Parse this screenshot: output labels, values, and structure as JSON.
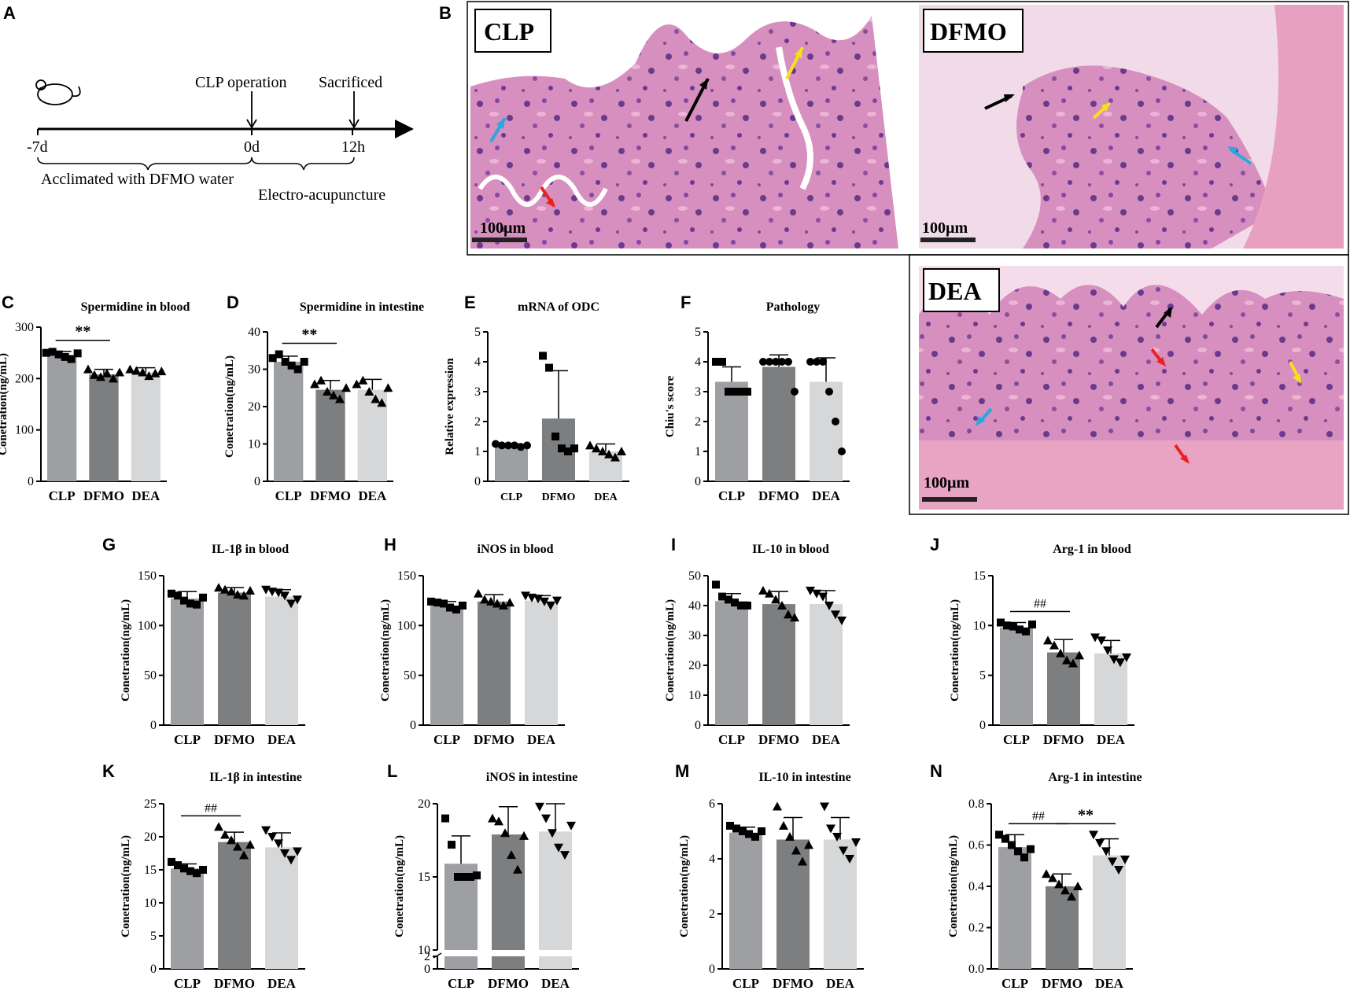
{
  "panel_labels": [
    "A",
    "B",
    "C",
    "D",
    "E",
    "F",
    "G",
    "H",
    "I",
    "J",
    "K",
    "L",
    "M",
    "N"
  ],
  "panel_a": {
    "event_cl": "CLP operation",
    "event_sac": "Sacrificed",
    "tick_start": "-7d",
    "tick_zero": "0d",
    "tick_end": "12h",
    "period1": "Acclimated with DFMO water",
    "period2": "Electro-acupuncture"
  },
  "panel_b": {
    "labels": [
      "CLP",
      "DFMO",
      "DEA"
    ],
    "scale_text": "100µm",
    "arrow_colors": [
      "#000000",
      "#f5e11a",
      "#2aa7e0",
      "#e8231f"
    ]
  },
  "colors": {
    "clp": "#9d9fa2",
    "dfmo": "#7d7e80",
    "dea": "#d6d7d8"
  },
  "chart_data": [
    {
      "id": "C",
      "type": "bar",
      "title": "Spermidine in blood",
      "ylabel": "Conetration(ng/mL)",
      "categories": [
        "CLP",
        "DFMO",
        "DEA"
      ],
      "values": [
        245,
        208,
        212
      ],
      "err": [
        8,
        10,
        9
      ],
      "ylim": [
        0,
        300
      ],
      "yticks": [
        0,
        100,
        200,
        300
      ],
      "sig": [
        {
          "from": 0,
          "to": 1,
          "label": "**"
        }
      ],
      "points": [
        [
          250,
          252,
          247,
          242,
          238,
          249
        ],
        [
          218,
          207,
          203,
          210,
          200,
          212
        ],
        [
          218,
          215,
          212,
          205,
          210,
          214
        ]
      ],
      "markers": [
        "square",
        "triangle",
        "triangle"
      ]
    },
    {
      "id": "D",
      "type": "bar",
      "title": "Spermidine in intestine",
      "ylabel": "Conetration(ng/mL)",
      "categories": [
        "CLP",
        "DFMO",
        "DEA"
      ],
      "values": [
        32,
        24.5,
        24.5
      ],
      "err": [
        1.5,
        2.5,
        2.8
      ],
      "ylim": [
        0,
        40
      ],
      "yticks": [
        0,
        10,
        20,
        30,
        40
      ],
      "sig": [
        {
          "from": 0,
          "to": 1,
          "label": "**"
        }
      ],
      "points": [
        [
          33,
          34,
          32,
          31,
          30,
          32
        ],
        [
          26,
          27,
          24,
          23,
          22,
          25
        ],
        [
          26,
          27,
          24,
          22,
          21,
          25
        ]
      ],
      "markers": [
        "square",
        "triangle",
        "triangle"
      ]
    },
    {
      "id": "E",
      "type": "bar",
      "title": "mRNA of ODC",
      "ylabel": "Relative expression",
      "categories": [
        "CLP",
        "DFMO",
        "DEA"
      ],
      "values": [
        1.2,
        2.1,
        1.0
      ],
      "err": [
        0.05,
        1.6,
        0.25
      ],
      "ylim": [
        0,
        5
      ],
      "yticks": [
        0,
        1,
        2,
        3,
        4,
        5
      ],
      "sig": [],
      "points": [
        [
          1.25,
          1.2,
          1.2,
          1.2,
          1.15,
          1.2
        ],
        [
          4.2,
          3.8,
          1.5,
          1.1,
          1.0,
          1.1
        ],
        [
          1.2,
          1.1,
          1.0,
          0.9,
          0.8,
          1.0
        ]
      ],
      "markers": [
        "circle",
        "square",
        "triangle"
      ],
      "sansfont": true
    },
    {
      "id": "F",
      "type": "bar",
      "title": "Pathology",
      "ylabel": "Chiu's score",
      "categories": [
        "CLP",
        "DFMO",
        "DEA"
      ],
      "values": [
        3.33,
        3.83,
        3.33
      ],
      "err": [
        0.5,
        0.4,
        0.8
      ],
      "ylim": [
        0,
        5
      ],
      "yticks": [
        0,
        1,
        2,
        3,
        4,
        5
      ],
      "sig": [],
      "points": [
        [
          4,
          4,
          3,
          3,
          3,
          3
        ],
        [
          4,
          4,
          4,
          4,
          4,
          3
        ],
        [
          4,
          4,
          4,
          3,
          2,
          1
        ]
      ],
      "markers": [
        "square",
        "circle",
        "circle"
      ]
    },
    {
      "id": "G",
      "type": "bar",
      "title": "IL-1β in blood",
      "ylabel": "Conetration(ng/mL)",
      "categories": [
        "CLP",
        "DFMO",
        "DEA"
      ],
      "values": [
        127,
        133,
        129
      ],
      "err": [
        7,
        5,
        7
      ],
      "ylim": [
        0,
        150
      ],
      "yticks": [
        0,
        50,
        100,
        150
      ],
      "sig": [],
      "points": [
        [
          132,
          130,
          125,
          122,
          121,
          128
        ],
        [
          138,
          136,
          134,
          131,
          130,
          135
        ],
        [
          136,
          134,
          133,
          130,
          122,
          126
        ]
      ],
      "markers": [
        "square",
        "triangle",
        "triangle-down"
      ]
    },
    {
      "id": "H",
      "type": "bar",
      "title": "iNOS in blood",
      "ylabel": "Conetration(ng/mL)",
      "categories": [
        "CLP",
        "DFMO",
        "DEA"
      ],
      "values": [
        120,
        124,
        125
      ],
      "err": [
        4,
        7,
        5
      ],
      "ylim": [
        0,
        150
      ],
      "yticks": [
        0,
        50,
        100,
        150
      ],
      "sig": [],
      "points": [
        [
          124,
          123,
          122,
          118,
          116,
          120
        ],
        [
          132,
          126,
          124,
          122,
          120,
          123
        ],
        [
          130,
          128,
          127,
          124,
          120,
          125
        ]
      ],
      "markers": [
        "square",
        "triangle",
        "triangle-down"
      ]
    },
    {
      "id": "I",
      "type": "bar",
      "title": "IL-10 in blood",
      "ylabel": "Conetration(ng/mL)",
      "categories": [
        "CLP",
        "DFMO",
        "DEA"
      ],
      "values": [
        41.5,
        40.5,
        40.5
      ],
      "err": [
        2.5,
        4.2,
        4.5
      ],
      "ylim": [
        0,
        50
      ],
      "yticks": [
        0,
        10,
        20,
        30,
        40,
        50
      ],
      "sig": [],
      "points": [
        [
          47,
          43,
          42,
          41,
          40,
          40
        ],
        [
          45,
          44,
          42,
          40,
          37,
          36
        ],
        [
          45,
          44,
          43,
          40,
          37,
          35
        ]
      ],
      "markers": [
        "square",
        "triangle",
        "triangle-down"
      ]
    },
    {
      "id": "J",
      "type": "bar",
      "title": "Arg-1 in blood",
      "ylabel": "Conetration(ng/mL)",
      "categories": [
        "CLP",
        "DFMO",
        "DEA"
      ],
      "values": [
        9.8,
        7.3,
        7.2
      ],
      "err": [
        0.5,
        1.3,
        1.3
      ],
      "ylim": [
        0,
        15
      ],
      "yticks": [
        0,
        5,
        10,
        15
      ],
      "sig": [
        {
          "from": 0,
          "to": 1,
          "label": "##"
        }
      ],
      "points": [
        [
          10.3,
          10.0,
          9.9,
          9.6,
          9.4,
          10.1
        ],
        [
          8.5,
          8.0,
          7.2,
          6.5,
          6.2,
          7.0
        ],
        [
          8.8,
          8.5,
          7.5,
          6.6,
          6.3,
          6.8
        ]
      ],
      "markers": [
        "square",
        "triangle",
        "triangle-down"
      ]
    },
    {
      "id": "K",
      "type": "bar",
      "title": "IL-1β in intestine",
      "ylabel": "Conetration(ng/mL)",
      "categories": [
        "CLP",
        "DFMO",
        "DEA"
      ],
      "values": [
        15.2,
        19.2,
        18.4
      ],
      "err": [
        0.7,
        1.5,
        2.2
      ],
      "ylim": [
        0,
        25
      ],
      "yticks": [
        0,
        5,
        10,
        15,
        20,
        25
      ],
      "sig": [
        {
          "from": 0,
          "to": 1,
          "label": "##"
        }
      ],
      "points": [
        [
          16.2,
          15.7,
          15.2,
          14.8,
          14.5,
          15.0
        ],
        [
          21.5,
          20.3,
          19.5,
          18.5,
          17.2,
          18.8
        ],
        [
          21,
          20,
          19,
          17.5,
          16.5,
          17.8
        ]
      ],
      "markers": [
        "square",
        "triangle",
        "triangle-down"
      ]
    },
    {
      "id": "L",
      "type": "bar",
      "title": "iNOS in intestine",
      "ylabel": "Conetration(ng/mL)",
      "categories": [
        "CLP",
        "DFMO",
        "DEA"
      ],
      "values": [
        15.9,
        17.9,
        18.1
      ],
      "err": [
        1.9,
        1.9,
        1.9
      ],
      "ylim": [
        0,
        20
      ],
      "yticks": [
        0,
        2,
        10,
        15,
        20
      ],
      "sig": [],
      "broken": true,
      "points": [
        [
          19.0,
          17.2,
          15.0,
          15.0,
          15.0,
          15.1
        ],
        [
          19.0,
          18.8,
          18.0,
          16.5,
          15.5,
          17.8
        ],
        [
          19.8,
          19.0,
          18.0,
          17.0,
          16.5,
          18.5
        ]
      ],
      "markers": [
        "square",
        "triangle",
        "triangle-down"
      ]
    },
    {
      "id": "M",
      "type": "bar",
      "title": "IL-10 in intestine",
      "ylabel": "Conetration(ng/mL)",
      "categories": [
        "CLP",
        "DFMO",
        "DEA"
      ],
      "values": [
        4.95,
        4.7,
        4.7
      ],
      "err": [
        0.2,
        0.8,
        0.8
      ],
      "ylim": [
        0,
        6
      ],
      "yticks": [
        0,
        2,
        4,
        6
      ],
      "sig": [],
      "points": [
        [
          5.2,
          5.1,
          5.0,
          4.9,
          4.8,
          5.0
        ],
        [
          5.9,
          5.2,
          4.8,
          4.3,
          3.9,
          4.5
        ],
        [
          5.9,
          5.1,
          4.8,
          4.3,
          4.0,
          4.6
        ]
      ],
      "markers": [
        "square",
        "triangle",
        "triangle-down"
      ]
    },
    {
      "id": "N",
      "type": "bar",
      "title": "Arg-1 in intestine",
      "ylabel": "Conetration(ng/mL)",
      "categories": [
        "CLP",
        "DFMO",
        "DEA"
      ],
      "values": [
        0.59,
        0.4,
        0.55
      ],
      "err": [
        0.06,
        0.06,
        0.08
      ],
      "ylim": [
        0,
        0.8
      ],
      "yticks": [
        0.0,
        0.2,
        0.4,
        0.6,
        0.8
      ],
      "sig": [
        {
          "from": 0,
          "to": 1,
          "label": "##"
        },
        {
          "from": 1,
          "to": 2,
          "label": "**"
        }
      ],
      "points": [
        [
          0.65,
          0.63,
          0.6,
          0.57,
          0.54,
          0.58
        ],
        [
          0.46,
          0.44,
          0.41,
          0.38,
          0.35,
          0.4
        ],
        [
          0.65,
          0.61,
          0.57,
          0.52,
          0.48,
          0.53
        ]
      ],
      "markers": [
        "square",
        "triangle",
        "triangle-down"
      ]
    }
  ]
}
